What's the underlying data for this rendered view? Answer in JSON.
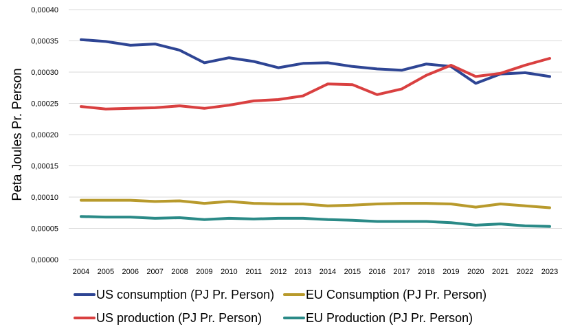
{
  "chart_data": {
    "type": "line",
    "title": "",
    "xlabel": "",
    "ylabel": "Peta Joules Pr. Person",
    "ylim": [
      0,
      0.0004
    ],
    "ytick_step": 5e-05,
    "yticks": [
      "0,00000",
      "0,00005",
      "0,00010",
      "0,00015",
      "0,00020",
      "0,00025",
      "0,00030",
      "0,00035",
      "0,00040"
    ],
    "grid": true,
    "legend_position": "bottom",
    "categories": [
      "2004",
      "2005",
      "2006",
      "2007",
      "2008",
      "2009",
      "2010",
      "2011",
      "2012",
      "2013",
      "2014",
      "2015",
      "2016",
      "2017",
      "2018",
      "2019",
      "2020",
      "2021",
      "2022",
      "2023"
    ],
    "series": [
      {
        "name": "US consumption (PJ Pr. Person)",
        "color": "#2E4594",
        "values": [
          0.000352,
          0.000349,
          0.000343,
          0.000345,
          0.000335,
          0.000315,
          0.000323,
          0.000317,
          0.000307,
          0.000314,
          0.000315,
          0.000309,
          0.000305,
          0.000303,
          0.000313,
          0.000309,
          0.000282,
          0.000297,
          0.000299,
          0.000293
        ]
      },
      {
        "name": "EU Consumption (PJ Pr. Person)",
        "color": "#B89A2C",
        "values": [
          9.5e-05,
          9.5e-05,
          9.5e-05,
          9.3e-05,
          9.4e-05,
          9e-05,
          9.3e-05,
          9e-05,
          8.9e-05,
          8.9e-05,
          8.6e-05,
          8.7e-05,
          8.9e-05,
          9e-05,
          9e-05,
          8.9e-05,
          8.4e-05,
          8.9e-05,
          8.6e-05,
          8.3e-05
        ]
      },
      {
        "name": "US production (PJ Pr. Person)",
        "color": "#D94040",
        "values": [
          0.000245,
          0.000241,
          0.000242,
          0.000243,
          0.000246,
          0.000242,
          0.000247,
          0.000254,
          0.000256,
          0.000262,
          0.000281,
          0.00028,
          0.000264,
          0.000273,
          0.000295,
          0.000311,
          0.000293,
          0.000298,
          0.000311,
          0.000322
        ]
      },
      {
        "name": "EU Production (PJ Pr. Person)",
        "color": "#2A8A87",
        "values": [
          6.9e-05,
          6.8e-05,
          6.8e-05,
          6.6e-05,
          6.7e-05,
          6.4e-05,
          6.6e-05,
          6.5e-05,
          6.6e-05,
          6.6e-05,
          6.4e-05,
          6.3e-05,
          6.1e-05,
          6.1e-05,
          6.1e-05,
          5.9e-05,
          5.5e-05,
          5.7e-05,
          5.4e-05,
          5.3e-05
        ]
      }
    ]
  }
}
